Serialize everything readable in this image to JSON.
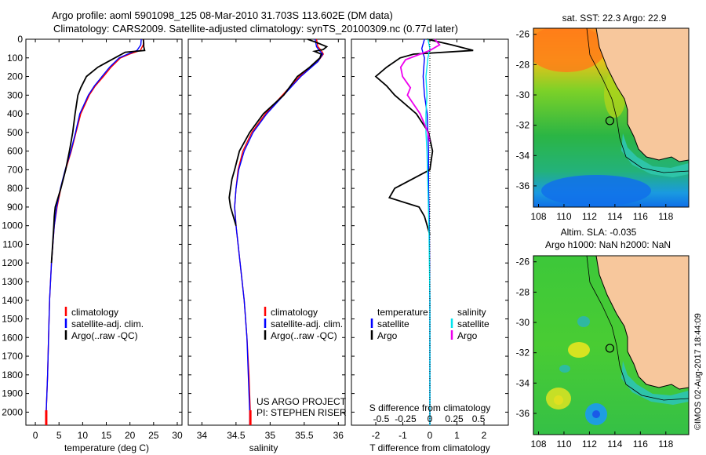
{
  "title": {
    "line1": "Argo profile: aoml 5901098_125 08-Mar-2010 31.703S 113.602E (DM data)",
    "line2": "Climatology: CARS2009. Satellite-adjusted climatology: synTS_20100309.nc (0.77d later)"
  },
  "colors": {
    "climatology": "#ff0000",
    "satellite_adj": "#0000ff",
    "argo": "#000000",
    "salinity_satellite": "#00e5ee",
    "salinity_argo": "#ee00ee",
    "land": "#f7c79c",
    "coast": "#000000"
  },
  "depth_axis": {
    "ticks": [
      0,
      100,
      200,
      300,
      400,
      500,
      600,
      700,
      800,
      900,
      1000,
      1100,
      1200,
      1300,
      1400,
      1500,
      1600,
      1700,
      1800,
      1900,
      2000
    ],
    "range": [
      0,
      2070
    ]
  },
  "legend_left": {
    "climatology": "climatology",
    "satellite": "satellite-adj. clim.",
    "argo": "Argo(..raw -QC)"
  },
  "legend_diff": {
    "temperature_header": "temperature",
    "salinity_header": "salinity",
    "satellite": "satellite",
    "argo": "Argo"
  },
  "credits": {
    "project": "US ARGO PROJECT",
    "pi": "PI: STEPHEN RISER"
  },
  "stamp": "©IMOS 02-Aug-2017 18:44:09",
  "map_sst": {
    "title": "sat. SST: 22.3 Argo: 22.9",
    "lon_ticks": [
      108,
      110,
      112,
      114,
      116,
      118
    ],
    "lat_ticks": [
      -26,
      -28,
      -30,
      -32,
      -34,
      -36
    ],
    "lon_range": [
      107.6,
      119.8
    ],
    "lat_range": [
      -25.6,
      -37.4
    ],
    "float_lon": 113.602,
    "float_lat": -31.703
  },
  "map_sla": {
    "title1": "Altim. SLA: -0.035",
    "title2": "Argo h1000: NaN h2000: NaN",
    "lon_ticks": [
      108,
      110,
      112,
      114,
      116,
      118
    ],
    "lat_ticks": [
      -26,
      -28,
      -30,
      -32,
      -34,
      -36
    ],
    "lon_range": [
      107.6,
      119.8
    ],
    "lat_range": [
      -25.6,
      -37.4
    ],
    "float_lon": 113.602,
    "float_lat": -31.703
  },
  "chart_data": [
    {
      "type": "line",
      "xlabel": "temperature (deg C)",
      "ylabel": "",
      "xlim": [
        -2,
        31
      ],
      "ylim": [
        2070,
        0
      ],
      "xticks": [
        0,
        5,
        10,
        15,
        20,
        25,
        30
      ],
      "series": [
        {
          "name": "climatology",
          "color": "#ff0000",
          "depth": [
            0,
            30,
            60,
            80,
            100,
            150,
            200,
            250,
            300,
            400,
            500,
            600,
            700,
            800,
            900,
            1000,
            1200,
            1400,
            1600,
            1800,
            2000,
            2070
          ],
          "values": [
            22.9,
            22.8,
            22.2,
            19.9,
            18.0,
            16.0,
            14.4,
            12.7,
            11.4,
            9.6,
            8.6,
            7.6,
            6.4,
            5.4,
            4.6,
            4.0,
            3.4,
            3.0,
            2.8,
            2.6,
            2.3,
            2.3
          ]
        },
        {
          "name": "satellite-adj. clim.",
          "color": "#0000ff",
          "depth": [
            0,
            30,
            60,
            80,
            100,
            150,
            200,
            250,
            300,
            400,
            500,
            600,
            700,
            800,
            900,
            1000,
            1200,
            1400,
            1600,
            1800,
            2000,
            2070
          ],
          "values": [
            22.4,
            22.3,
            21.5,
            19.5,
            17.7,
            15.7,
            14.1,
            12.5,
            11.2,
            9.4,
            8.5,
            7.5,
            6.3,
            5.3,
            4.5,
            4.0,
            3.4,
            3.0,
            2.8,
            2.6,
            2.3,
            2.3
          ]
        },
        {
          "name": "Argo(..raw -QC)",
          "color": "#000000",
          "depth": [
            0,
            20,
            40,
            60,
            70,
            100,
            150,
            200,
            260,
            300,
            400,
            500,
            600,
            700,
            800,
            900,
            950,
            1000,
            1200
          ],
          "values": [
            22.8,
            22.9,
            22.9,
            23.1,
            19.0,
            16.8,
            13.2,
            10.8,
            9.6,
            9.0,
            8.4,
            7.9,
            7.2,
            6.4,
            5.4,
            4.2,
            4.0,
            3.9,
            3.4
          ]
        }
      ]
    },
    {
      "type": "line",
      "xlabel": "salinity",
      "ylabel": "",
      "xlim": [
        33.8,
        36.1
      ],
      "ylim": [
        2070,
        0
      ],
      "xticks": [
        34,
        34.5,
        35,
        35.5,
        36
      ],
      "series": [
        {
          "name": "climatology",
          "color": "#ff0000",
          "depth": [
            0,
            40,
            60,
            80,
            120,
            200,
            300,
            400,
            500,
            600,
            700,
            800,
            900,
            1000,
            1200,
            1400,
            1600,
            1800,
            2000,
            2070
          ],
          "values": [
            35.68,
            35.7,
            35.75,
            35.78,
            35.7,
            35.43,
            35.18,
            34.93,
            34.73,
            34.6,
            34.53,
            34.5,
            34.48,
            34.5,
            34.56,
            34.62,
            34.66,
            34.69,
            34.71,
            34.71
          ]
        },
        {
          "name": "satellite-adj. clim.",
          "color": "#0000ff",
          "depth": [
            0,
            40,
            60,
            80,
            120,
            200,
            300,
            400,
            500,
            600,
            700,
            800,
            900,
            1000,
            1200,
            1400,
            1600,
            1800,
            2000,
            2070
          ],
          "values": [
            35.66,
            35.68,
            35.72,
            35.77,
            35.7,
            35.45,
            35.2,
            34.95,
            34.75,
            34.62,
            34.54,
            34.5,
            34.48,
            34.5,
            34.56,
            34.62,
            34.66,
            34.68,
            34.7,
            34.7
          ]
        },
        {
          "name": "Argo(..raw -QC)",
          "color": "#000000",
          "depth": [
            0,
            20,
            40,
            55,
            65,
            80,
            100,
            150,
            200,
            300,
            400,
            500,
            600,
            700,
            750,
            800,
            850,
            900,
            950,
            1000
          ],
          "values": [
            35.55,
            35.7,
            35.83,
            35.78,
            35.65,
            35.75,
            35.73,
            35.58,
            35.4,
            35.2,
            34.9,
            34.7,
            34.55,
            34.48,
            34.44,
            34.42,
            34.4,
            34.42,
            34.46,
            34.5
          ]
        }
      ]
    },
    {
      "type": "line",
      "xlabel": "T difference from climatology",
      "ylabel": "",
      "x2label": "S difference from climatology",
      "xlim": [
        -2.9,
        2.9
      ],
      "ylim": [
        2070,
        0
      ],
      "xticks": [
        -2,
        -1,
        0,
        1,
        2
      ],
      "s_ticks": [
        -0.5,
        -0.25,
        0,
        0.25,
        0.5
      ],
      "s_tick_labels": [
        "-0.5",
        "-0.25",
        "0",
        "0.25",
        "0.5"
      ],
      "series": [
        {
          "name": "satellite",
          "quantity": "temperature",
          "color": "#0000ff",
          "depth": [
            0,
            50,
            100,
            200,
            300,
            400,
            600,
            800,
            1000,
            1400,
            2000,
            2070
          ],
          "values": [
            -0.2,
            -0.3,
            -0.2,
            -0.25,
            -0.2,
            -0.1,
            -0.05,
            -0.05,
            -0.02,
            0,
            0,
            0
          ]
        },
        {
          "name": "Argo",
          "quantity": "temperature",
          "color": "#000000",
          "depth": [
            0,
            30,
            60,
            80,
            100,
            150,
            200,
            250,
            300,
            400,
            500,
            600,
            700,
            800,
            850,
            900,
            950,
            1000,
            1050
          ],
          "values": [
            -0.1,
            0.8,
            1.6,
            -0.6,
            -1.1,
            -1.6,
            -2.0,
            -1.6,
            -1.3,
            -0.5,
            -0.05,
            0.1,
            0.0,
            -1.3,
            -1.5,
            -0.4,
            -0.2,
            -0.1,
            0.0
          ]
        },
        {
          "name": "satellite",
          "quantity": "salinity",
          "color": "#00e5ee",
          "depth": [
            0,
            50,
            100,
            200,
            300,
            400,
            500,
            600,
            800,
            1000,
            1400,
            2000,
            2070
          ],
          "values": [
            -0.02,
            0.0,
            -0.02,
            -0.04,
            -0.03,
            -0.04,
            -0.04,
            -0.03,
            -0.02,
            -0.01,
            0,
            0,
            0
          ]
        },
        {
          "name": "Argo",
          "quantity": "salinity",
          "color": "#ee00ee",
          "depth": [
            0,
            30,
            60,
            80,
            110,
            150,
            200,
            260,
            300,
            400,
            500,
            550
          ],
          "values": [
            0.05,
            0.1,
            0.0,
            -0.1,
            -0.25,
            -0.3,
            -0.28,
            -0.2,
            -0.23,
            -0.1,
            -0.02,
            0.0
          ]
        }
      ]
    }
  ]
}
